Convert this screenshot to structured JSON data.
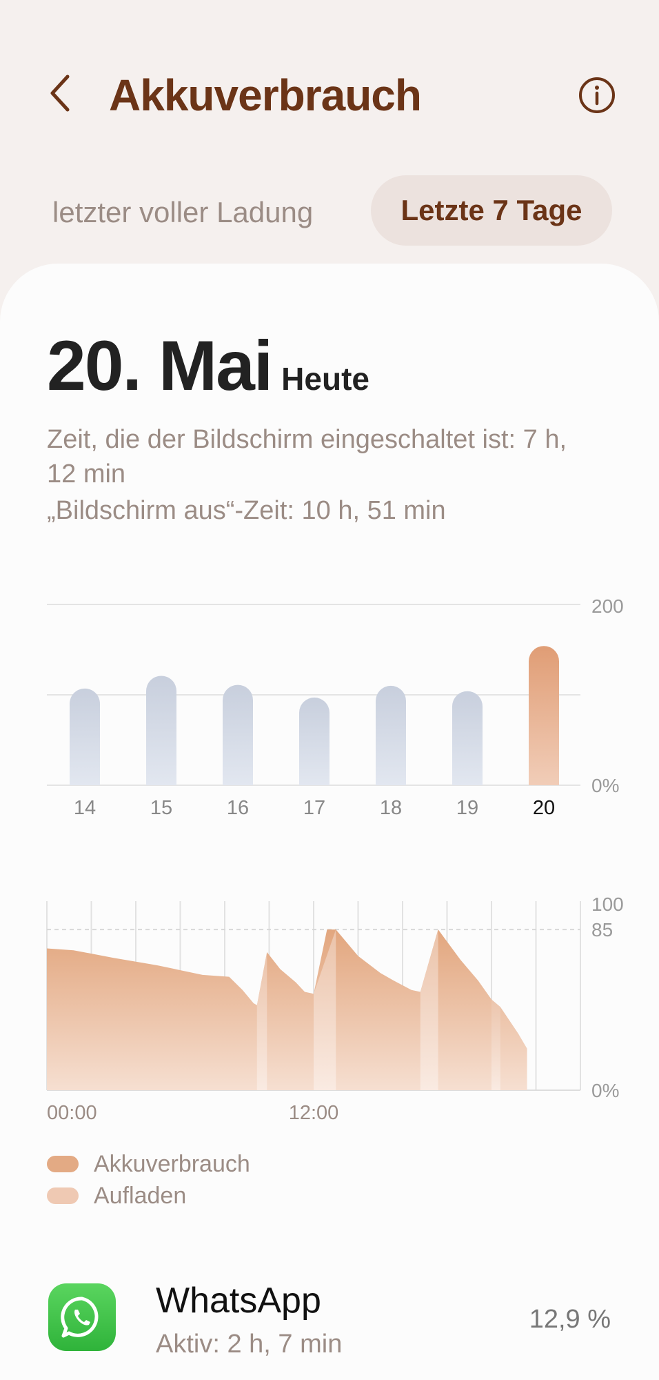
{
  "header": {
    "title": "Akkuverbrauch",
    "back_icon": "chevron-left-icon",
    "info_icon": "info-circle-icon"
  },
  "tabs": [
    {
      "label": "letzter voller Ladung",
      "active": false
    },
    {
      "label": "Letzte 7 Tage",
      "active": true
    }
  ],
  "summary": {
    "date": "20. Mai",
    "date_note": "Heute",
    "screen_on_line1": "Zeit, die der Bildschirm eingeschaltet ist: 7 h,",
    "screen_on_line2": "12 min",
    "screen_off": "„Bildschirm aus“-Zeit: 10 h, 51 min"
  },
  "colors": {
    "accent": "#6b3417",
    "usage": "#e3aa84",
    "charging": "#efc9b3",
    "bar_default": "#cdd4e1",
    "bar_selected": "#e1a27b"
  },
  "chart_data": [
    {
      "type": "bar",
      "categories": [
        "14",
        "15",
        "16",
        "17",
        "18",
        "19",
        "20"
      ],
      "values": [
        107,
        121,
        111,
        97,
        110,
        104,
        154
      ],
      "selected_category": "20",
      "y_tick_labels": [
        "200",
        "0%"
      ],
      "ylim": [
        0,
        200
      ],
      "grid": true
    },
    {
      "type": "area",
      "x_unit": "hours",
      "xlim": [
        0,
        24
      ],
      "ylim": [
        0,
        100
      ],
      "x_tick_labels": [
        "00:00",
        "12:00"
      ],
      "y_tick_labels": [
        "100",
        "85",
        "0%"
      ],
      "reference_line": 85,
      "series": [
        {
          "name": "Akkuverbrauch",
          "points": [
            [
              0,
              75
            ],
            [
              1.2,
              74
            ],
            [
              3,
              70
            ],
            [
              5,
              66
            ],
            [
              7,
              61
            ],
            [
              8.2,
              60
            ],
            [
              8.8,
              53
            ],
            [
              9.3,
              46
            ],
            [
              9.45,
              45
            ],
            [
              9.9,
              73
            ],
            [
              10.5,
              64
            ],
            [
              11.2,
              57
            ],
            [
              11.6,
              52
            ],
            [
              12.0,
              51
            ],
            [
              12.6,
              85
            ],
            [
              13.0,
              85
            ],
            [
              14.0,
              71
            ],
            [
              15.0,
              62
            ],
            [
              15.6,
              58
            ],
            [
              16.4,
              53
            ],
            [
              16.8,
              52
            ],
            [
              17.6,
              85
            ],
            [
              18.6,
              69
            ],
            [
              19.4,
              58
            ],
            [
              20.0,
              48
            ],
            [
              20.4,
              44
            ],
            [
              21.2,
              30
            ],
            [
              21.6,
              22
            ]
          ]
        },
        {
          "name": "Aufladen",
          "segments": [
            [
              9.45,
              9.9
            ],
            [
              12.0,
              13.0
            ],
            [
              16.8,
              17.6
            ],
            [
              20.0,
              20.4
            ]
          ]
        }
      ]
    }
  ],
  "legend": [
    {
      "label": "Akkuverbrauch"
    },
    {
      "label": "Aufladen"
    }
  ],
  "apps": [
    {
      "name": "WhatsApp",
      "active": "Aktiv: 2 h, 7 min",
      "percent": "12,9 %",
      "icon": "whatsapp-icon"
    }
  ]
}
